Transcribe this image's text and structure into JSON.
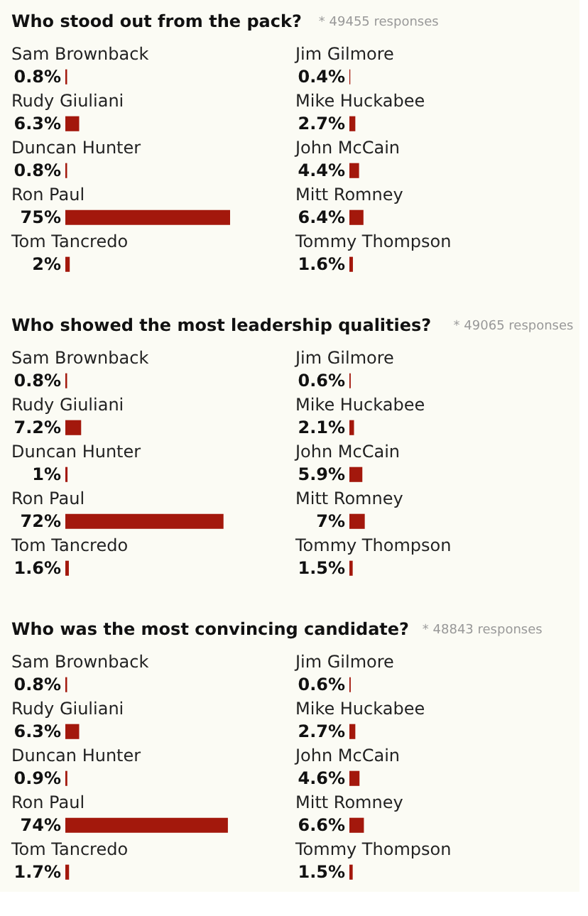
{
  "chart_data": [
    {
      "type": "bar",
      "orientation": "horizontal",
      "title": "Who stood out from the pack?",
      "annotations": [
        "* 49455 responses"
      ],
      "color": "#a3180c",
      "categories": [
        "Sam Brownback",
        "Rudy Giuliani",
        "Duncan Hunter",
        "Ron Paul",
        "Tom Tancredo"
      ],
      "values": [
        0.8,
        6.3,
        0.8,
        75,
        2
      ],
      "value_labels": [
        "0.8%",
        "6.3%",
        "0.8%",
        "75%",
        "2%"
      ]
    },
    {
      "type": "bar",
      "orientation": "horizontal",
      "color": "#a3180c",
      "categories": [
        "Jim Gilmore",
        "Mike Huckabee",
        "John McCain",
        "Mitt Romney",
        "Tommy Thompson"
      ],
      "values": [
        0.4,
        2.7,
        4.4,
        6.4,
        1.6
      ],
      "value_labels": [
        "0.4%",
        "2.7%",
        "4.4%",
        "6.4%",
        "1.6%"
      ]
    },
    {
      "type": "bar",
      "orientation": "horizontal",
      "title": "Who showed the most leadership qualities?",
      "annotations": [
        "* 49065 responses"
      ],
      "color": "#a3180c",
      "categories": [
        "Sam Brownback",
        "Rudy Giuliani",
        "Duncan Hunter",
        "Ron Paul",
        "Tom Tancredo"
      ],
      "values": [
        0.8,
        7.2,
        1,
        72,
        1.6
      ],
      "value_labels": [
        "0.8%",
        "7.2%",
        "1%",
        "72%",
        "1.6%"
      ]
    },
    {
      "type": "bar",
      "orientation": "horizontal",
      "color": "#a3180c",
      "categories": [
        "Jim Gilmore",
        "Mike Huckabee",
        "John McCain",
        "Mitt Romney",
        "Tommy Thompson"
      ],
      "values": [
        0.6,
        2.1,
        5.9,
        7,
        1.5
      ],
      "value_labels": [
        "0.6%",
        "2.1%",
        "5.9%",
        "7%",
        "1.5%"
      ]
    },
    {
      "type": "bar",
      "orientation": "horizontal",
      "title": "Who was the most convincing candidate?",
      "annotations": [
        "* 48843 responses"
      ],
      "color": "#a3180c",
      "categories": [
        "Sam Brownback",
        "Rudy Giuliani",
        "Duncan Hunter",
        "Ron Paul",
        "Tom Tancredo"
      ],
      "values": [
        0.8,
        6.3,
        0.9,
        74,
        1.7
      ],
      "value_labels": [
        "0.8%",
        "6.3%",
        "0.9%",
        "74%",
        "1.7%"
      ]
    },
    {
      "type": "bar",
      "orientation": "horizontal",
      "color": "#a3180c",
      "categories": [
        "Jim Gilmore",
        "Mike Huckabee",
        "John McCain",
        "Mitt Romney",
        "Tommy Thompson"
      ],
      "values": [
        0.6,
        2.7,
        4.6,
        6.6,
        1.5
      ],
      "value_labels": [
        "0.6%",
        "2.7%",
        "4.6%",
        "6.6%",
        "1.5%"
      ]
    }
  ]
}
